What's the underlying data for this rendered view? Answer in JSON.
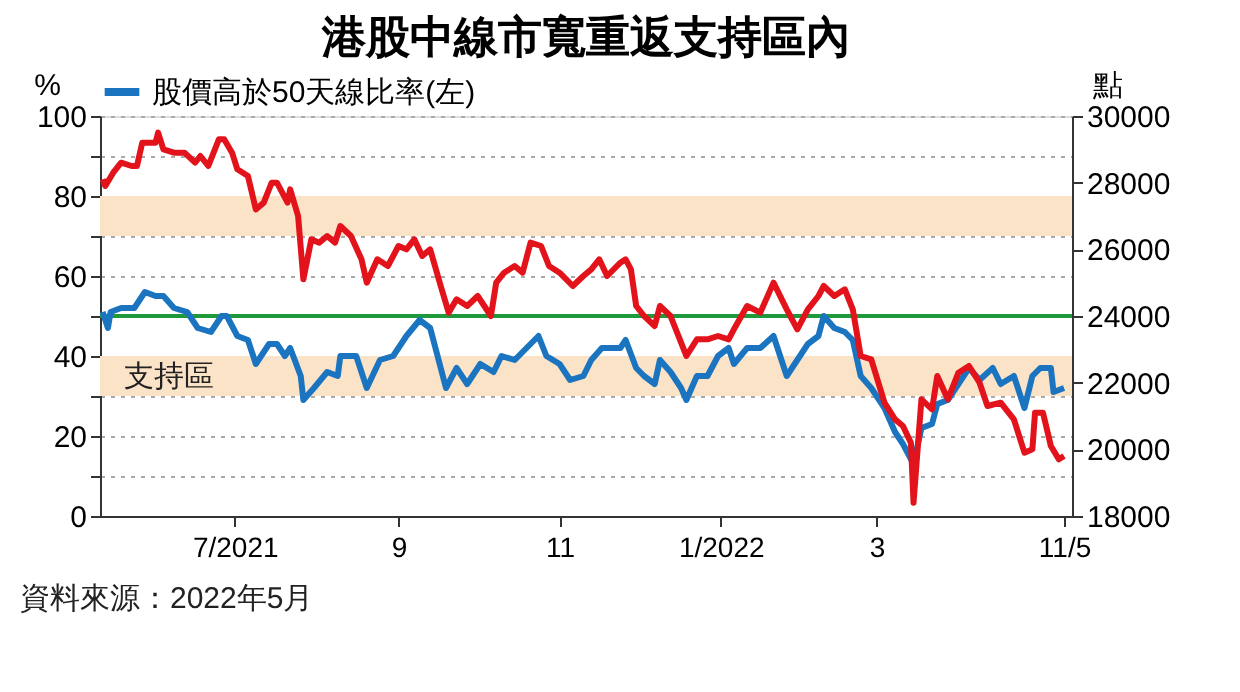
{
  "chart_data": {
    "type": "line",
    "title": "港股中線市寬重返支持區內",
    "ylabel": "%",
    "y2label": "點",
    "xlim": [
      "2021-05-11",
      "2022-05-14"
    ],
    "xticks": [
      {
        "value": "2021-07-01",
        "label": "7/2021"
      },
      {
        "value": "2021-09-01",
        "label": "9"
      },
      {
        "value": "2021-11-01",
        "label": "11"
      },
      {
        "value": "2022-01-01",
        "label": "1/2022"
      },
      {
        "value": "2022-03-01",
        "label": "3"
      },
      {
        "value": "2022-05-11",
        "label": "11/5"
      }
    ],
    "ylim": [
      0,
      100
    ],
    "yticks": [
      0,
      {
        "value": 10,
        "label": null
      },
      20,
      {
        "value": 30,
        "label": null
      },
      40,
      {
        "value": 50,
        "label": null
      },
      60,
      {
        "value": 70,
        "label": null
      },
      80,
      {
        "value": 90,
        "label": null
      },
      100
    ],
    "y2lim": [
      18000,
      30000
    ],
    "y2ticks": [
      18000,
      20000,
      22000,
      24000,
      26000,
      28000,
      30000
    ],
    "grid": "y",
    "legend": "top",
    "marker": "none",
    "line_style": "solid",
    "bands": [
      {
        "axis": "y",
        "from": 30,
        "to": 40,
        "label": "支持區",
        "color": "#fbe3c8"
      },
      {
        "axis": "y",
        "from": 70,
        "to": 80,
        "color": "#fbe3c8"
      }
    ],
    "ref_lines": [
      {
        "axis": "y",
        "value": 50,
        "color": "#1e9a3c"
      }
    ],
    "annotations": [
      "資料來源：2022年5月"
    ],
    "series": [
      {
        "name": "股價高於50天線比率(左)",
        "color": "#1a74c0",
        "x": [
          "2021-05-12",
          "2021-05-14",
          "2021-05-15",
          "2021-05-19",
          "2021-05-24",
          "2021-05-28",
          "2021-06-01",
          "2021-06-04",
          "2021-06-08",
          "2021-06-13",
          "2021-06-17",
          "2021-06-22",
          "2021-06-26",
          "2021-06-28",
          "2021-07-02",
          "2021-07-06",
          "2021-07-09",
          "2021-07-14",
          "2021-07-17",
          "2021-07-20",
          "2021-07-22",
          "2021-07-26",
          "2021-07-27",
          "2021-07-31",
          "2021-08-05",
          "2021-08-09",
          "2021-08-10",
          "2021-08-16",
          "2021-08-20",
          "2021-08-25",
          "2021-08-30",
          "2021-09-04",
          "2021-09-09",
          "2021-09-13",
          "2021-09-19",
          "2021-09-23",
          "2021-09-27",
          "2021-10-02",
          "2021-10-07",
          "2021-10-10",
          "2021-10-15",
          "2021-10-18",
          "2021-10-24",
          "2021-10-27",
          "2021-11-01",
          "2021-11-05",
          "2021-11-10",
          "2021-11-13",
          "2021-11-17",
          "2021-11-19",
          "2021-11-24",
          "2021-11-26",
          "2021-11-30",
          "2021-12-03",
          "2021-12-07",
          "2021-12-09",
          "2021-12-13",
          "2021-12-17",
          "2021-12-19",
          "2021-12-23",
          "2021-12-27",
          "2021-12-31",
          "2022-01-04",
          "2022-01-06",
          "2022-01-11",
          "2022-01-16",
          "2022-01-21",
          "2022-01-26",
          "2022-01-30",
          "2022-02-03",
          "2022-02-07",
          "2022-02-09",
          "2022-02-13",
          "2022-02-17",
          "2022-02-20",
          "2022-02-23",
          "2022-02-27",
          "2022-03-04",
          "2022-03-08",
          "2022-03-11",
          "2022-03-15",
          "2022-03-18",
          "2022-03-22",
          "2022-03-24",
          "2022-03-28",
          "2022-04-01",
          "2022-04-05",
          "2022-04-09",
          "2022-04-14",
          "2022-04-17",
          "2022-04-22",
          "2022-04-26",
          "2022-04-29",
          "2022-05-02",
          "2022-05-06",
          "2022-05-07",
          "2022-05-11"
        ],
        "values": [
          51,
          47,
          51,
          52,
          52,
          56,
          55,
          55,
          52,
          51,
          47,
          46,
          50,
          50,
          45,
          44,
          38,
          43,
          43,
          40,
          42,
          35,
          29,
          32,
          36,
          35,
          40,
          40,
          32,
          39,
          40,
          45,
          49,
          47,
          32,
          37,
          33,
          38,
          36,
          40,
          39,
          41,
          45,
          40,
          38,
          34,
          35,
          39,
          42,
          42,
          42,
          44,
          37,
          35,
          33,
          39,
          36,
          32,
          29,
          35,
          35,
          40,
          42,
          38,
          42,
          42,
          45,
          35,
          39,
          43,
          45,
          50,
          47,
          46,
          44,
          35,
          32,
          27,
          21,
          18,
          13,
          22,
          23,
          28,
          29,
          33,
          37,
          34,
          37,
          33,
          35,
          27,
          35,
          37,
          37,
          31,
          32
        ]
      },
      {
        "color": "#e3131b",
        "axis": "y2",
        "x": [
          "2021-05-12",
          "2021-05-13",
          "2021-05-16",
          "2021-05-19",
          "2021-05-23",
          "2021-05-25",
          "2021-05-27",
          "2021-06-01",
          "2021-06-02",
          "2021-06-04",
          "2021-06-08",
          "2021-06-12",
          "2021-06-16",
          "2021-06-18",
          "2021-06-21",
          "2021-06-25",
          "2021-06-27",
          "2021-06-30",
          "2021-07-02",
          "2021-07-06",
          "2021-07-09",
          "2021-07-12",
          "2021-07-15",
          "2021-07-17",
          "2021-07-21",
          "2021-07-22",
          "2021-07-25",
          "2021-07-27",
          "2021-07-30",
          "2021-08-02",
          "2021-08-05",
          "2021-08-08",
          "2021-08-10",
          "2021-08-14",
          "2021-08-18",
          "2021-08-20",
          "2021-08-24",
          "2021-08-28",
          "2021-09-01",
          "2021-09-04",
          "2021-09-07",
          "2021-09-10",
          "2021-09-13",
          "2021-09-17",
          "2021-09-20",
          "2021-09-23",
          "2021-09-27",
          "2021-10-01",
          "2021-10-06",
          "2021-10-08",
          "2021-10-11",
          "2021-10-15",
          "2021-10-18",
          "2021-10-21",
          "2021-10-25",
          "2021-10-28",
          "2021-11-01",
          "2021-11-06",
          "2021-11-10",
          "2021-11-13",
          "2021-11-16",
          "2021-11-19",
          "2021-11-24",
          "2021-11-26",
          "2021-11-28",
          "2021-11-30",
          "2021-12-03",
          "2021-12-07",
          "2021-12-09",
          "2021-12-13",
          "2021-12-17",
          "2021-12-19",
          "2021-12-23",
          "2021-12-27",
          "2021-12-31",
          "2022-01-04",
          "2022-01-06",
          "2022-01-11",
          "2022-01-16",
          "2022-01-21",
          "2022-01-26",
          "2022-01-30",
          "2022-02-03",
          "2022-02-07",
          "2022-02-09",
          "2022-02-13",
          "2022-02-17",
          "2022-02-20",
          "2022-02-23",
          "2022-02-27",
          "2022-03-04",
          "2022-03-08",
          "2022-03-11",
          "2022-03-14",
          "2022-03-15",
          "2022-03-18",
          "2022-03-22",
          "2022-03-24",
          "2022-03-28",
          "2022-04-01",
          "2022-04-05",
          "2022-04-09",
          "2022-04-12",
          "2022-04-17",
          "2022-04-22",
          "2022-04-26",
          "2022-04-29",
          "2022-04-30",
          "2022-05-03",
          "2022-05-06",
          "2022-05-09",
          "2022-05-11"
        ],
        "values": [
          28100,
          27900,
          28300,
          28600,
          28500,
          28500,
          29200,
          29200,
          29500,
          29000,
          28900,
          28900,
          28600,
          28800,
          28500,
          29300,
          29300,
          28900,
          28400,
          28200,
          27200,
          27400,
          28000,
          28000,
          27400,
          27800,
          27000,
          25100,
          26300,
          26200,
          26400,
          26200,
          26700,
          26400,
          25700,
          25000,
          25700,
          25500,
          26100,
          26000,
          26300,
          25800,
          26000,
          24900,
          24100,
          24500,
          24300,
          24600,
          24000,
          25000,
          25300,
          25500,
          25300,
          26200,
          26100,
          25500,
          25300,
          24900,
          25200,
          25400,
          25700,
          25200,
          25600,
          25700,
          25400,
          24300,
          24000,
          23700,
          24300,
          24000,
          23200,
          22800,
          23300,
          23300,
          23400,
          23300,
          23600,
          24300,
          24100,
          25000,
          24200,
          23600,
          24200,
          24600,
          24900,
          24600,
          24800,
          24200,
          22800,
          22700,
          21400,
          20900,
          20700,
          20200,
          18400,
          21500,
          21200,
          22200,
          21500,
          22300,
          22500,
          22000,
          21300,
          21400,
          20900,
          19900,
          20000,
          21100,
          21100,
          20100,
          19700,
          19800
        ]
      }
    ]
  }
}
